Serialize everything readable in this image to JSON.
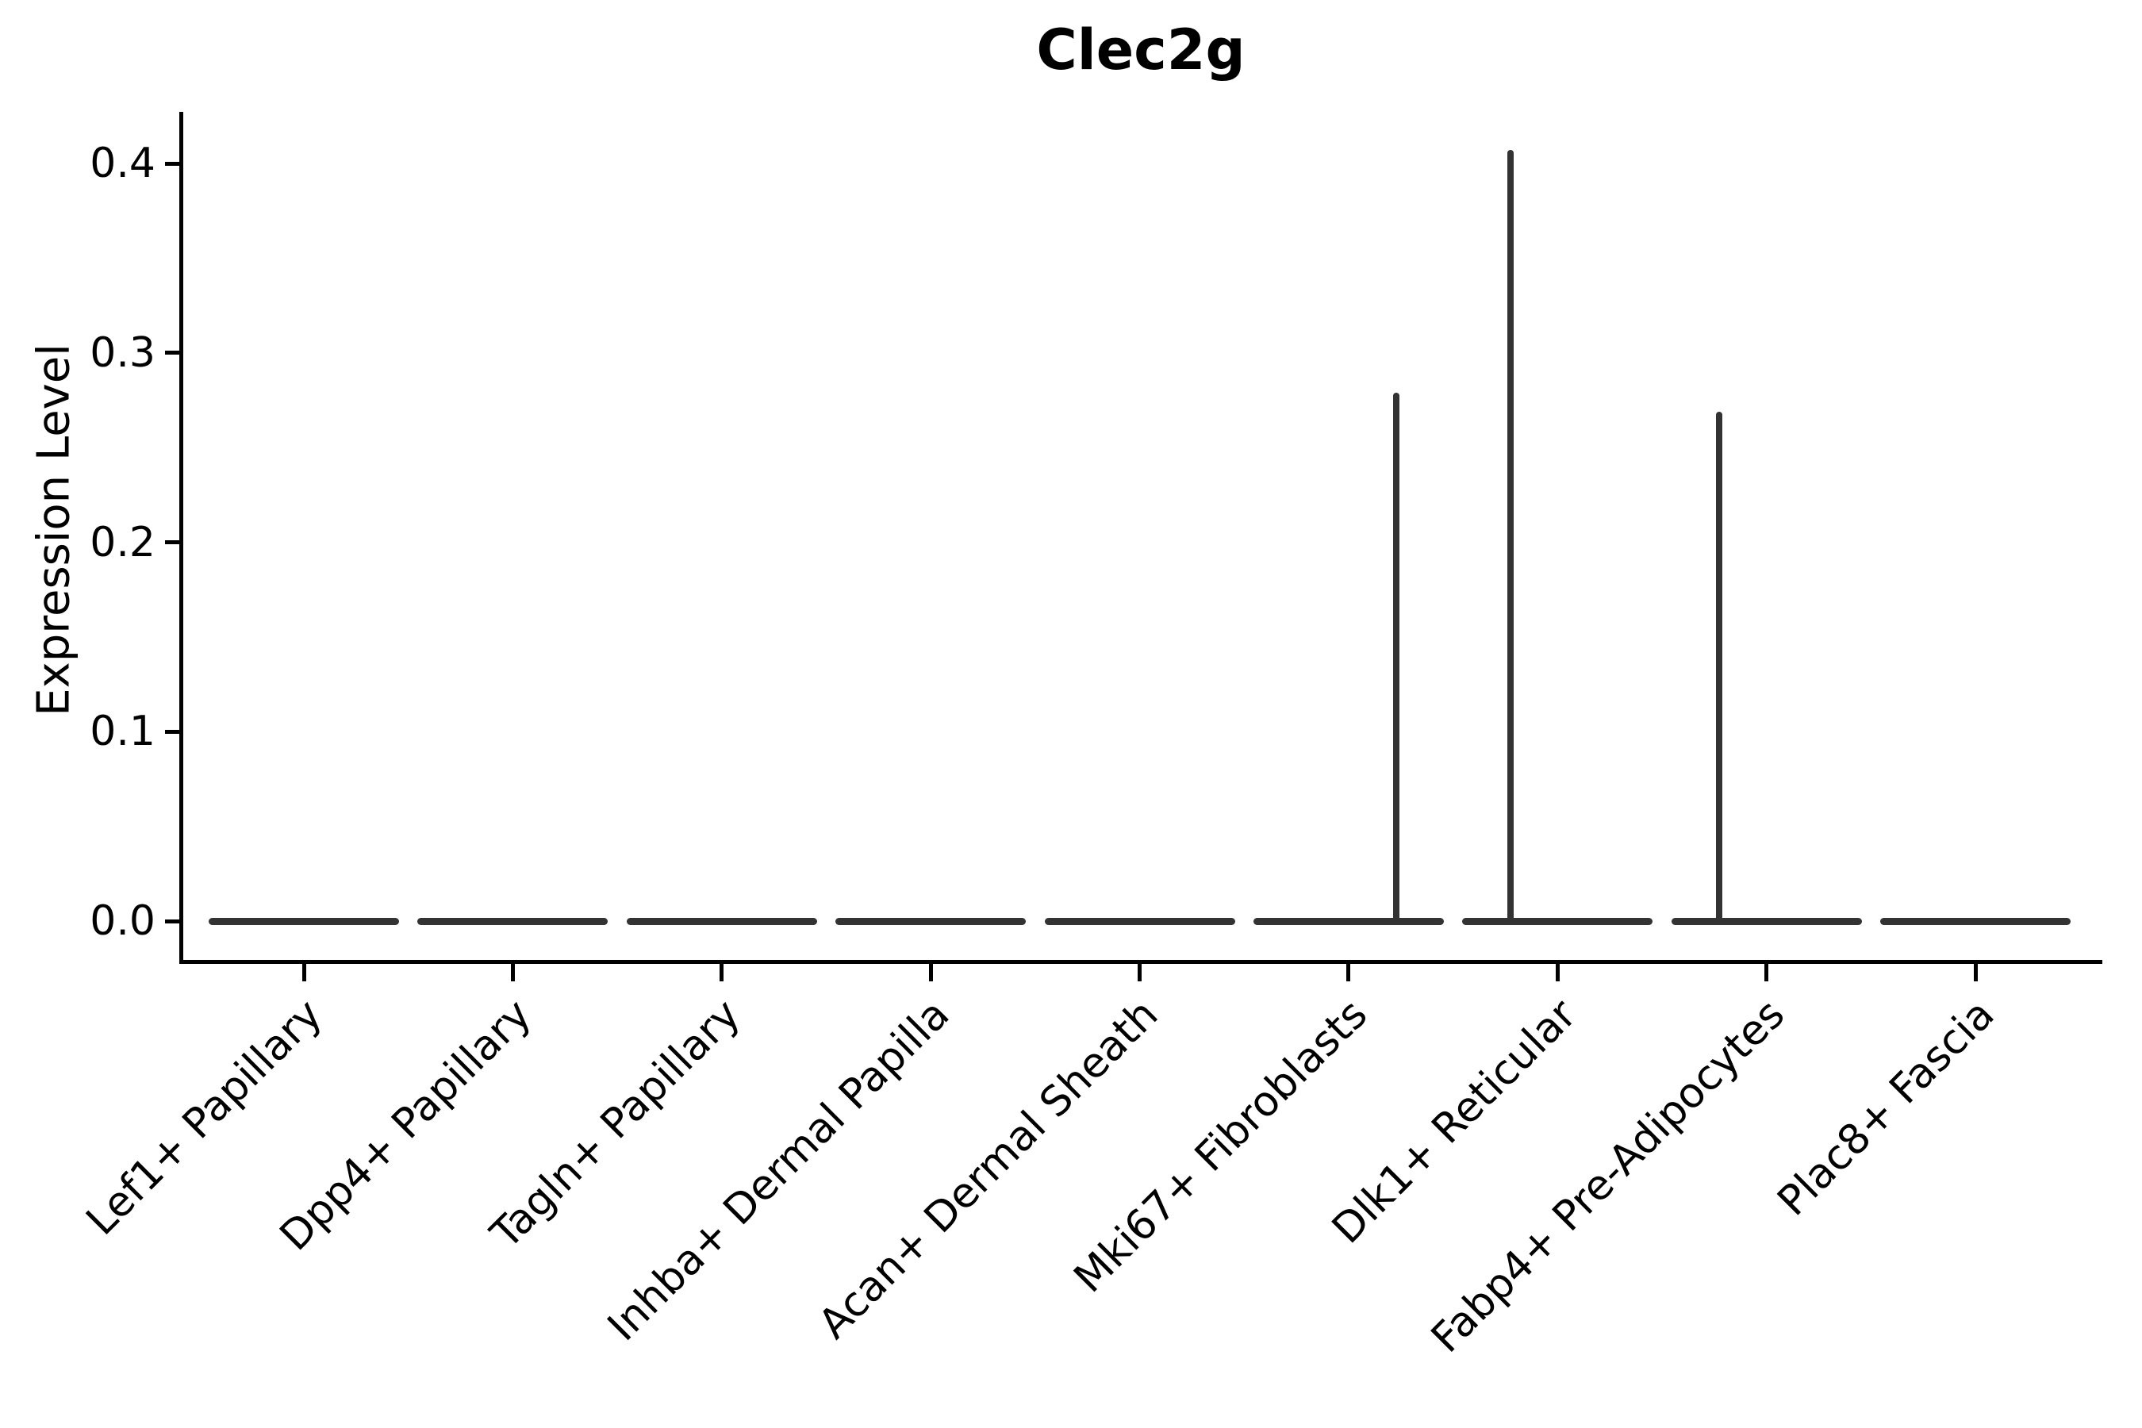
{
  "title": "Clec2g",
  "colors": {
    "violin": "#333333",
    "axis": "#000000",
    "text": "#000000",
    "background": "#ffffff"
  },
  "chart_data": {
    "type": "violin",
    "title": "Clec2g",
    "xlabel": "",
    "ylabel": "Expression Level",
    "ylim": [
      -0.02,
      0.427
    ],
    "grid": false,
    "legend": null,
    "yticks": [
      {
        "value": 0.0,
        "label": "0.0"
      },
      {
        "value": 0.1,
        "label": "0.1"
      },
      {
        "value": 0.2,
        "label": "0.2"
      },
      {
        "value": 0.3,
        "label": "0.3"
      },
      {
        "value": 0.4,
        "label": "0.4"
      }
    ],
    "categories": [
      "Lef1+ Papillary",
      "Dpp4+ Papillary",
      "Tagln+ Papillary",
      "Inhba+ Dermal Papilla",
      "Acan+ Dermal Sheath",
      "Mki67+ Fibroblasts",
      "Dlk1+ Reticular",
      "Fabp4+ Pre-Adipocytes",
      "Plac8+ Fascia"
    ],
    "violins": [
      {
        "label": "Lef1+ Papillary",
        "median": 0.0,
        "max_expression": 0.0
      },
      {
        "label": "Dpp4+ Papillary",
        "median": 0.0,
        "max_expression": 0.0
      },
      {
        "label": "Tagln+ Papillary",
        "median": 0.0,
        "max_expression": 0.0
      },
      {
        "label": "Inhba+ Dermal Papilla",
        "median": 0.0,
        "max_expression": 0.0
      },
      {
        "label": "Acan+ Dermal Sheath",
        "median": 0.0,
        "max_expression": 0.0
      },
      {
        "label": "Mki67+ Fibroblasts",
        "median": 0.0,
        "max_expression": 0.279,
        "peak_x_offset_frac": 0.228
      },
      {
        "label": "Dlk1+ Reticular",
        "median": 0.0,
        "max_expression": 0.407,
        "peak_x_offset_frac": -0.225
      },
      {
        "label": "Fabp4+ Pre-Adipocytes",
        "median": 0.0,
        "max_expression": 0.269,
        "peak_x_offset_frac": -0.228
      },
      {
        "label": "Plac8+ Fascia",
        "median": 0.0,
        "max_expression": 0.0
      }
    ]
  }
}
